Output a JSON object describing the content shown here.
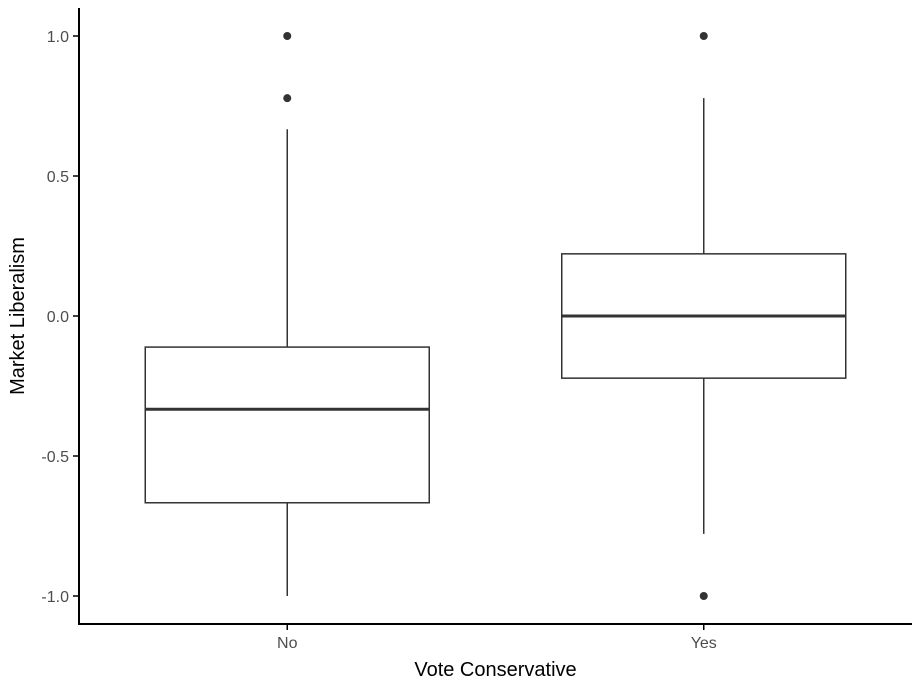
{
  "chart_data": {
    "type": "box",
    "title": "",
    "xlabel": "Vote Conservative",
    "ylabel": "Market Liberalism",
    "ylim": [
      -1.1,
      1.1
    ],
    "yticks": [
      1.0,
      0.5,
      0.0,
      -0.5,
      -1.0
    ],
    "ytick_labels": [
      "1.0",
      "0.5",
      "0.0",
      "-0.5",
      "-1.0"
    ],
    "categories": [
      "No",
      "Yes"
    ],
    "boxes": [
      {
        "category": "No",
        "whisker_low": -1.0,
        "q1": -0.667,
        "median": -0.333,
        "q3": -0.111,
        "whisker_high": 0.667,
        "outliers": [
          1.0,
          0.778
        ]
      },
      {
        "category": "Yes",
        "whisker_low": -0.778,
        "q1": -0.222,
        "median": 0.0,
        "q3": 0.222,
        "whisker_high": 0.778,
        "outliers": [
          1.0,
          -1.0
        ]
      }
    ],
    "grid": false,
    "legend": "none",
    "colors": {
      "box_line": "#333333",
      "box_fill": "#ffffff",
      "outlier": "#333333",
      "axis": "#000000",
      "tick_text": "#4d4d4d"
    }
  }
}
